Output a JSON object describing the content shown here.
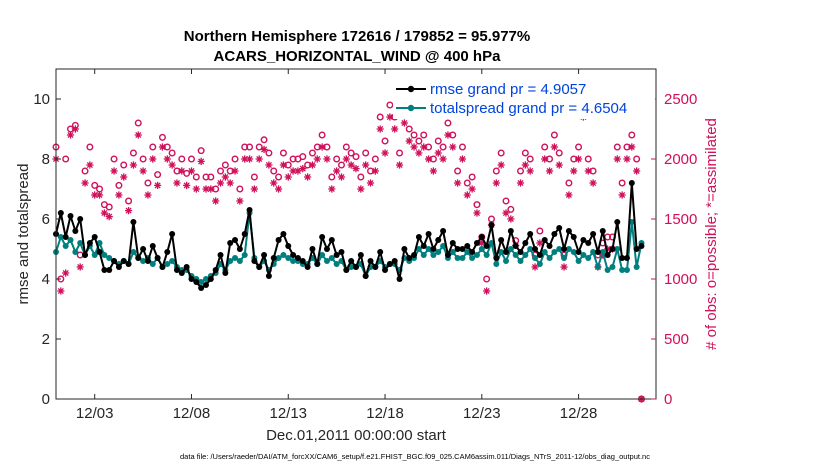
{
  "title_line1": "Northern Hemisphere 172616 / 179852 = 95.977%",
  "title_line2": "ACARS_HORIZONTAL_WIND @ 400 hPa",
  "xlabel": "Dec.01,2011 00:00:00 start",
  "ylabel_left": "rmse and totalspread",
  "ylabel_right": "# of obs: o=possible; *=assimilated",
  "footer": "data file: /Users/raeder/DAI/ATM_forcXX/CAM6_setup/f.e21.FHIST_BGC.f09_025.CAM6assim.011/Diags_NTrS_2011-12/obs_diag_output.nc",
  "colors": {
    "rmse": "#000000",
    "spread": "#007f7f",
    "count": "#d0105a",
    "legend_text": "#0044dd"
  },
  "chart_data": {
    "type": "line",
    "xlim": [
      0,
      31
    ],
    "ylim_left": [
      0,
      11
    ],
    "ylim_right": [
      0,
      2750
    ],
    "x_ticks": [
      2,
      7,
      12,
      17,
      22,
      27
    ],
    "x_tick_labels": [
      "12/03",
      "12/08",
      "12/13",
      "12/18",
      "12/23",
      "12/28"
    ],
    "y_left_ticks": [
      0,
      2,
      4,
      6,
      8,
      10
    ],
    "y_right_ticks": [
      0,
      500,
      1000,
      1500,
      2000,
      2500
    ],
    "legend": [
      "rmse grand pr = 4.9057",
      "totalspread grand pr = 4.6504"
    ],
    "series": [
      {
        "name": "rmse",
        "x_start": 0,
        "x_step": 0.25,
        "values": [
          5.5,
          6.2,
          5.4,
          6.1,
          5.6,
          6.0,
          4.8,
          5.2,
          5.4,
          4.9,
          4.3,
          4.3,
          4.6,
          4.4,
          4.6,
          4.5,
          5.9,
          4.7,
          5.0,
          4.6,
          5.1,
          4.7,
          4.4,
          4.9,
          5.5,
          4.3,
          4.2,
          4.4,
          4.0,
          3.9,
          3.7,
          3.8,
          4.0,
          4.3,
          4.8,
          4.2,
          5.2,
          5.3,
          5.0,
          5.5,
          6.3,
          4.6,
          4.4,
          4.8,
          4.1,
          4.7,
          5.3,
          5.5,
          5.1,
          4.8,
          4.7,
          4.6,
          4.4,
          5.0,
          4.5,
          5.4,
          5.0,
          5.3,
          4.8,
          4.9,
          4.3,
          4.6,
          4.4,
          4.8,
          4.1,
          4.6,
          4.4,
          4.9,
          4.3,
          4.5,
          4.6,
          4.0,
          5.0,
          4.7,
          4.8,
          5.4,
          5.1,
          5.5,
          5.0,
          5.3,
          5.6,
          4.8,
          5.2,
          5.0,
          5.0,
          5.1,
          4.9,
          5.2,
          5.4,
          5.1,
          5.8,
          4.7,
          5.3,
          4.9,
          5.6,
          5.1,
          4.9,
          5.2,
          5.5,
          5.0,
          4.8,
          5.3,
          5.1,
          5.5,
          5.7,
          5.0,
          5.6,
          5.4,
          4.9,
          5.3,
          5.2,
          5.5,
          4.9,
          5.6,
          4.8,
          5.0,
          5.9,
          4.7,
          4.7,
          7.2,
          5.0,
          5.1
        ]
      },
      {
        "name": "totalspread",
        "x_start": 0,
        "x_step": 0.25,
        "values": [
          4.9,
          5.4,
          5.1,
          5.3,
          4.9,
          5.2,
          4.8,
          5.1,
          4.8,
          5.2,
          4.8,
          4.7,
          4.6,
          4.5,
          4.6,
          4.5,
          4.9,
          4.7,
          4.6,
          4.7,
          4.5,
          4.7,
          4.4,
          4.5,
          4.6,
          4.4,
          4.3,
          4.3,
          4.1,
          4.0,
          3.9,
          4.0,
          4.1,
          4.2,
          4.5,
          4.3,
          4.6,
          4.7,
          4.6,
          4.8,
          6.2,
          4.7,
          4.4,
          4.6,
          4.3,
          4.5,
          4.7,
          4.8,
          4.7,
          4.6,
          4.6,
          4.5,
          4.5,
          4.7,
          4.5,
          4.8,
          4.6,
          4.7,
          4.5,
          4.6,
          4.3,
          4.4,
          4.4,
          4.5,
          4.1,
          4.4,
          4.4,
          4.6,
          4.4,
          4.5,
          4.5,
          4.3,
          4.7,
          4.6,
          4.7,
          5.0,
          4.8,
          5.0,
          4.8,
          4.9,
          5.1,
          4.7,
          4.9,
          4.7,
          4.7,
          4.9,
          4.7,
          4.8,
          5.0,
          4.8,
          5.2,
          4.5,
          4.9,
          4.6,
          5.0,
          4.8,
          4.6,
          4.8,
          5.0,
          4.7,
          4.5,
          4.9,
          4.7,
          4.9,
          5.0,
          4.7,
          5.0,
          4.9,
          4.6,
          4.8,
          4.7,
          4.9,
          4.4,
          4.9,
          4.3,
          4.4,
          5.0,
          4.3,
          4.3,
          5.9,
          4.4,
          5.2
        ]
      },
      {
        "name": "possible",
        "axis": "right",
        "marker": "circle",
        "x_start": 0,
        "x_step": 0.25,
        "values": [
          2100,
          1000,
          2000,
          2250,
          2280,
          1200,
          1900,
          2100,
          1780,
          1750,
          1620,
          1600,
          2000,
          1780,
          1950,
          1650,
          2050,
          2300,
          2000,
          1800,
          2100,
          1870,
          2180,
          2100,
          2050,
          1900,
          2000,
          1880,
          2000,
          1850,
          2070,
          1850,
          1850,
          1750,
          1900,
          1950,
          1900,
          2000,
          1750,
          2100,
          2100,
          1850,
          2100,
          2160,
          2050,
          1900,
          1850,
          2050,
          1950,
          2000,
          2000,
          2020,
          1950,
          2050,
          2100,
          2200,
          2100,
          1850,
          2000,
          1950,
          2100,
          2050,
          2020,
          1850,
          2050,
          1900,
          2000,
          2350,
          2150,
          2450,
          2350,
          2050,
          2400,
          2250,
          2200,
          2150,
          2200,
          2100,
          2000,
          2150,
          2100,
          2300,
          2200,
          1900,
          2100,
          1800,
          1850,
          1620,
          1350,
          1000,
          1500,
          1900,
          2050,
          1650,
          1580,
          1320,
          1900,
          2050,
          2000,
          1200,
          1400,
          2100,
          2000,
          2200,
          2050,
          1200,
          1800,
          2000,
          2100,
          2450,
          2000,
          1900,
          1200,
          1300,
          1350,
          1350,
          2100,
          1800,
          2100,
          2200,
          2000,
          0
        ]
      },
      {
        "name": "assimilated",
        "axis": "right",
        "marker": "asterisk",
        "x_start": 0,
        "x_step": 0.25,
        "values": [
          2000,
          900,
          1050,
          2200,
          2250,
          1100,
          1800,
          1950,
          1700,
          1700,
          1550,
          1520,
          1900,
          1700,
          1850,
          1570,
          1950,
          2200,
          1900,
          1700,
          2000,
          1780,
          2100,
          2000,
          1950,
          1800,
          1900,
          1780,
          1900,
          1750,
          1980,
          1750,
          1750,
          1650,
          1800,
          1850,
          1800,
          1900,
          1650,
          2000,
          2000,
          1750,
          2000,
          2080,
          1950,
          1800,
          1750,
          1950,
          1850,
          1900,
          1900,
          1920,
          1850,
          1950,
          2000,
          2100,
          2000,
          1750,
          1900,
          1850,
          2000,
          1950,
          1920,
          1750,
          1950,
          1800,
          1900,
          2250,
          2050,
          2350,
          2250,
          1950,
          2300,
          2150,
          2100,
          2050,
          2100,
          2000,
          1900,
          2050,
          2000,
          2200,
          2100,
          1800,
          2000,
          1700,
          1750,
          1550,
          1300,
          900,
          1450,
          1800,
          1950,
          1550,
          1500,
          1280,
          1800,
          1950,
          1900,
          1100,
          1300,
          2000,
          1900,
          2100,
          1950,
          1100,
          1700,
          1900,
          2000,
          2350,
          1900,
          1800,
          1100,
          1200,
          1250,
          1250,
          2000,
          1700,
          2000,
          2100,
          1900,
          0
        ]
      }
    ]
  }
}
